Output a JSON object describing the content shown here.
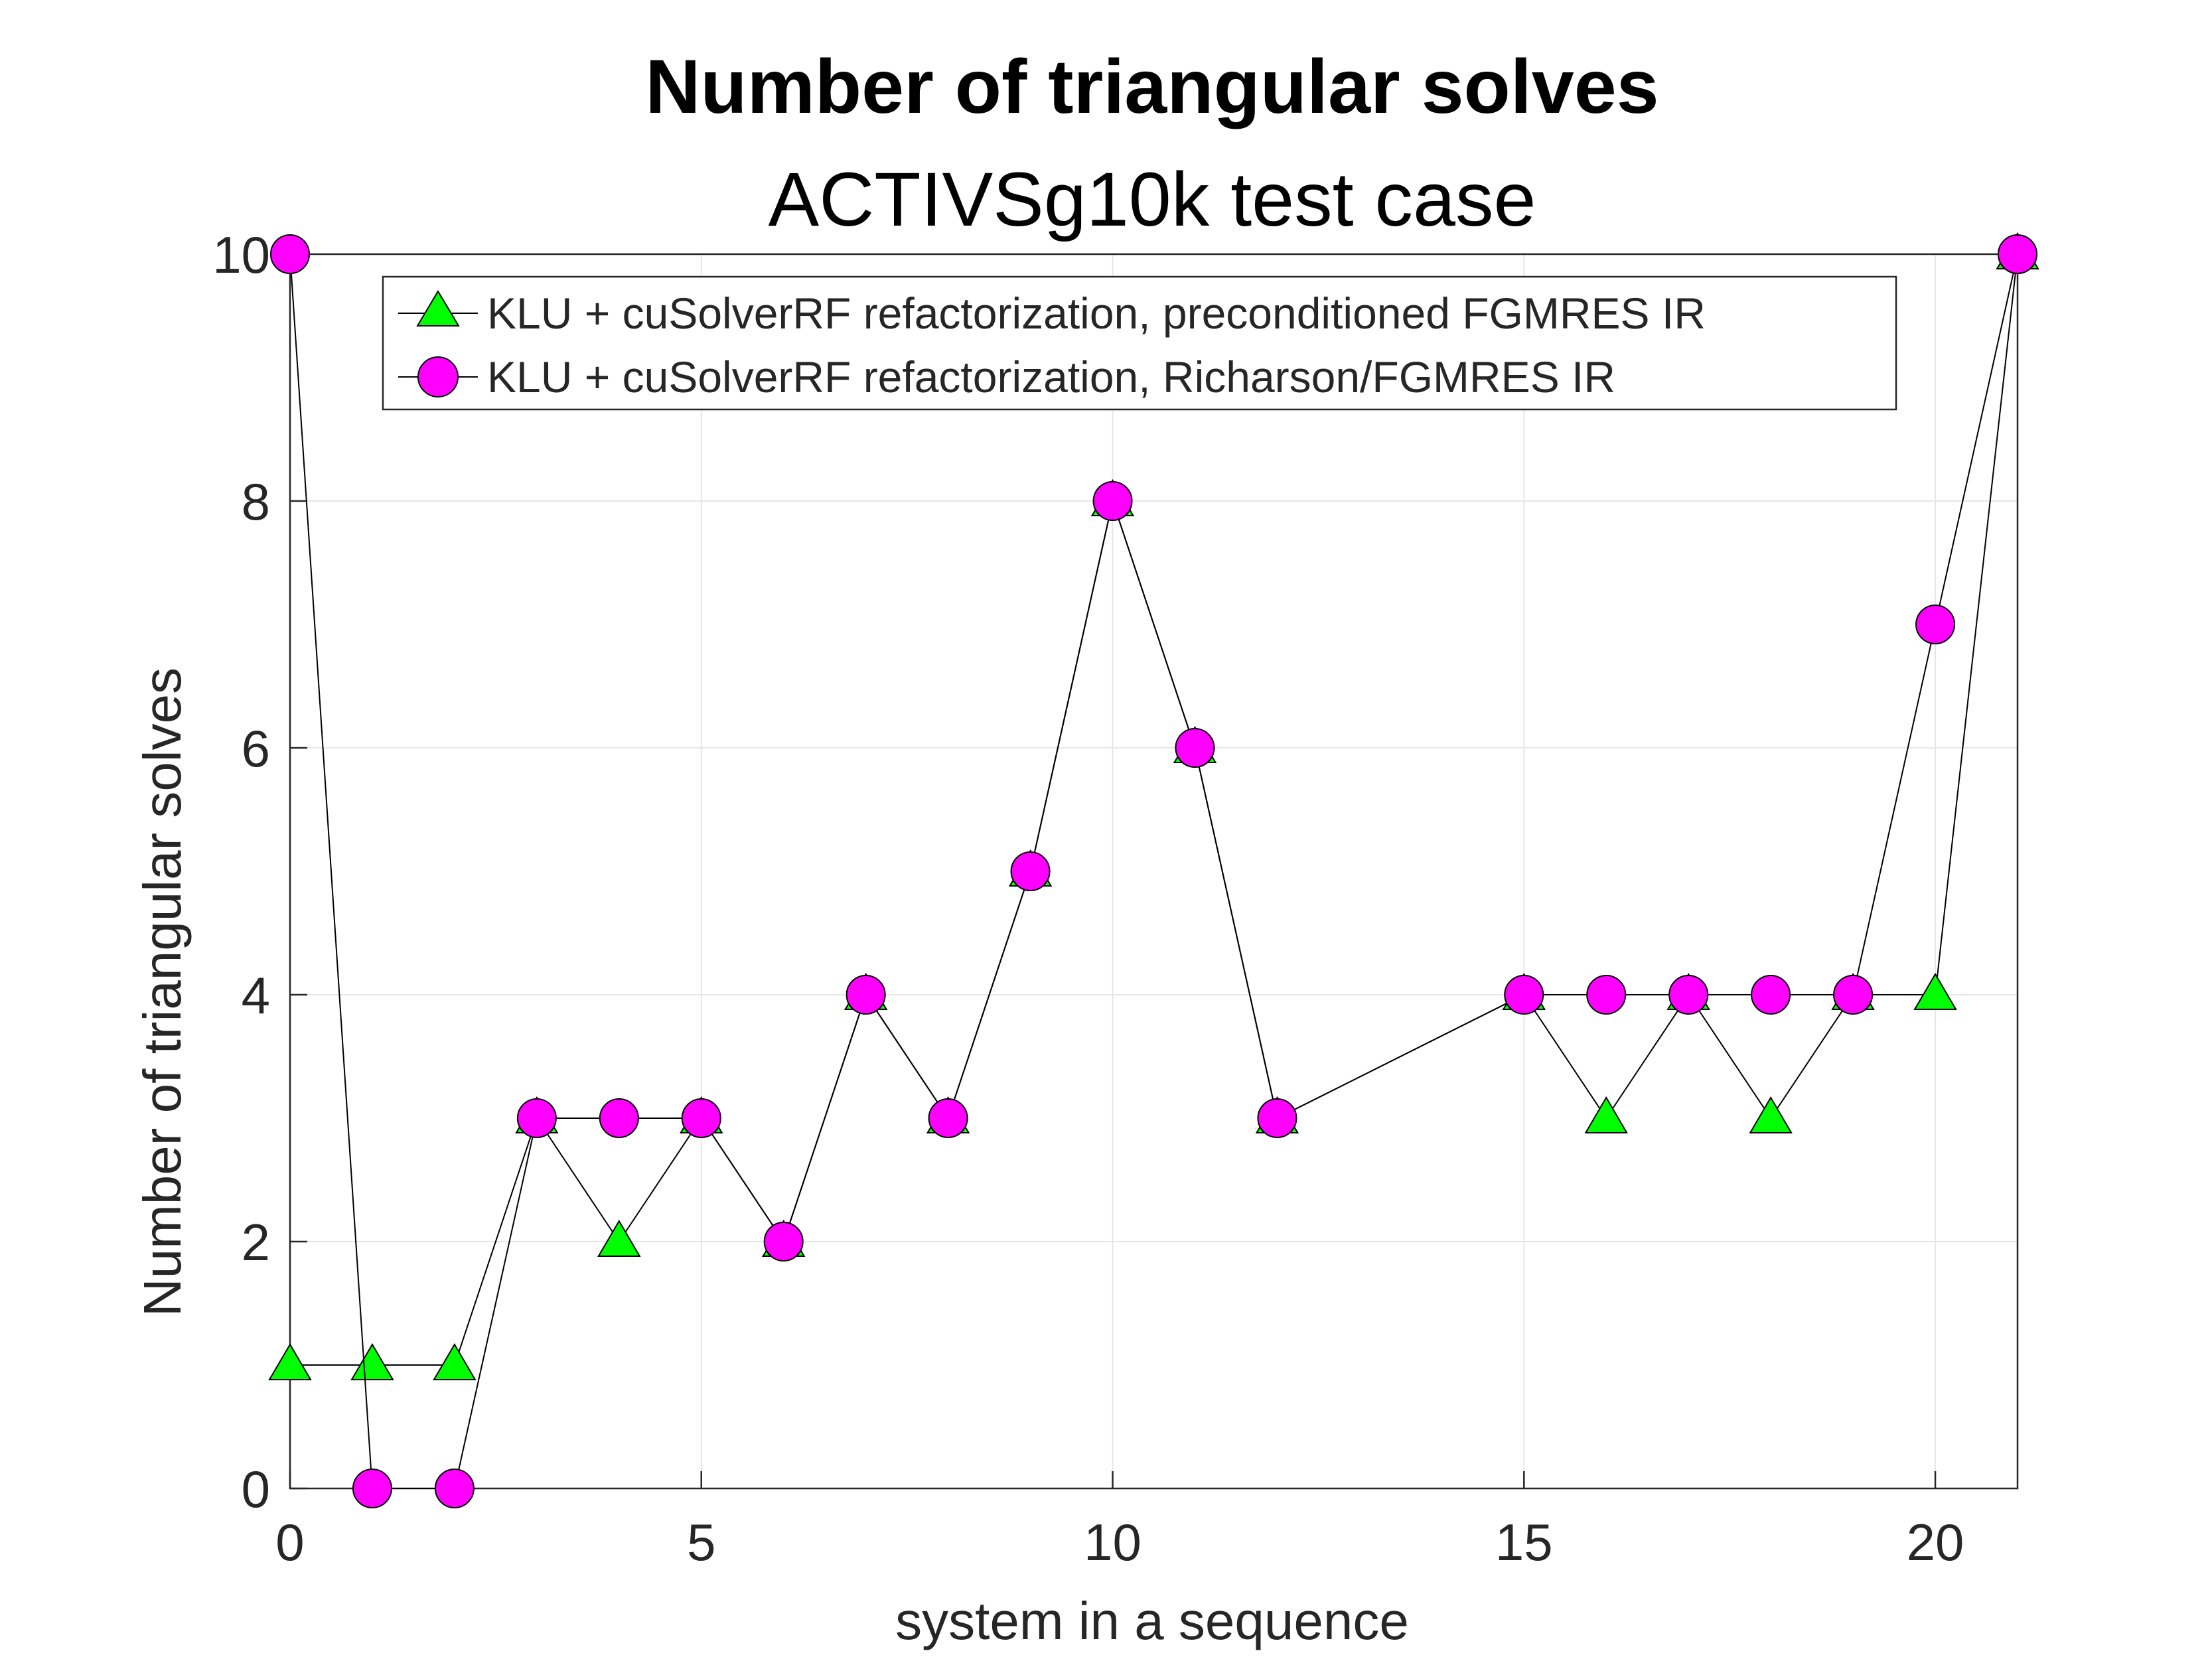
{
  "chart_data": {
    "type": "line",
    "title": "Number of triangular solves",
    "subtitle": "ACTIVSg10k test case",
    "xlabel": "system in a sequence",
    "ylabel": "Number of triangular solves",
    "xlim": [
      0,
      21
    ],
    "ylim": [
      0,
      10
    ],
    "xticks": [
      0,
      5,
      10,
      15,
      20
    ],
    "xtick_labels": [
      "0",
      "5",
      "10",
      "15",
      "20"
    ],
    "yticks": [
      0,
      2,
      4,
      6,
      8,
      10
    ],
    "ytick_labels": [
      "0",
      "2",
      "4",
      "6",
      "8",
      "10"
    ],
    "grid": true,
    "legend_position": "top",
    "series": [
      {
        "name": "KLU + cuSolverRF refactorization, preconditioned FGMRES IR",
        "marker": "triangle",
        "color": "#00ff00",
        "x": [
          0,
          1,
          2,
          3,
          4,
          5,
          6,
          7,
          8,
          9,
          10,
          11,
          12,
          15,
          16,
          17,
          18,
          19,
          20,
          21
        ],
        "y": [
          1,
          1,
          1,
          3,
          2,
          3,
          2,
          4,
          3,
          5,
          8,
          6,
          3,
          4,
          3,
          4,
          3,
          4,
          4,
          10
        ]
      },
      {
        "name": "KLU + cuSolverRF refactorization, Richarson/FGMRES IR",
        "marker": "circle",
        "color": "#ff00ff",
        "x": [
          0,
          1,
          2,
          3,
          4,
          5,
          6,
          7,
          8,
          9,
          10,
          11,
          12,
          15,
          16,
          17,
          18,
          19,
          20,
          21
        ],
        "y": [
          10,
          0,
          0,
          3,
          3,
          3,
          2,
          4,
          3,
          5,
          8,
          6,
          3,
          4,
          4,
          4,
          4,
          4,
          7,
          10
        ]
      }
    ]
  }
}
